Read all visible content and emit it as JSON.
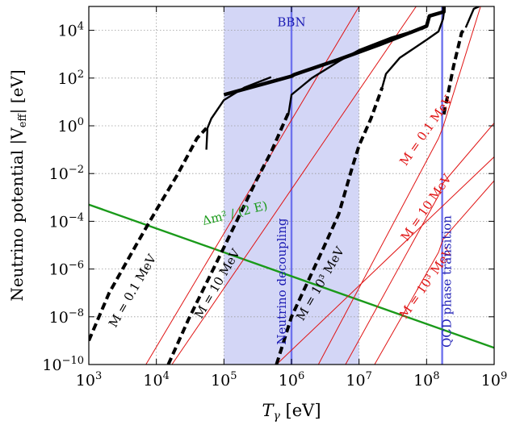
{
  "chart_data": {
    "type": "line",
    "x_scale": "log",
    "y_scale": "log",
    "xlim": [
      1000,
      1000000000
    ],
    "ylim": [
      1e-10,
      100000
    ],
    "grid": true,
    "xlabel_var": "T",
    "xlabel_sub": "γ",
    "xlabel_unit": " [eV]",
    "ylabel": "Neutrino potential |V",
    "ylabel_sub": "eff",
    "ylabel_unit": "| [eV]",
    "x_ticks": [
      {
        "value": 1000,
        "base": "10",
        "exp": "3"
      },
      {
        "value": 10000,
        "base": "10",
        "exp": "4"
      },
      {
        "value": 100000,
        "base": "10",
        "exp": "5"
      },
      {
        "value": 1000000,
        "base": "10",
        "exp": "6"
      },
      {
        "value": 10000000,
        "base": "10",
        "exp": "7"
      },
      {
        "value": 100000000,
        "base": "10",
        "exp": "8"
      },
      {
        "value": 1000000000,
        "base": "10",
        "exp": "9"
      }
    ],
    "y_ticks": [
      {
        "value": 1e-10,
        "base": "10",
        "exp": "−10"
      },
      {
        "value": 1e-08,
        "base": "10",
        "exp": "−8"
      },
      {
        "value": 1e-06,
        "base": "10",
        "exp": "−6"
      },
      {
        "value": 0.0001,
        "base": "10",
        "exp": "−4"
      },
      {
        "value": 0.01,
        "base": "10",
        "exp": "−2"
      },
      {
        "value": 1,
        "base": "10",
        "exp": "0"
      },
      {
        "value": 100,
        "base": "10",
        "exp": "2"
      },
      {
        "value": 10000,
        "base": "10",
        "exp": "4"
      }
    ],
    "bbn_band": {
      "x_range": [
        100000,
        10000000
      ],
      "color": "#d3d6f6",
      "label": "BBN"
    },
    "vertical_lines": [
      {
        "x": 1000000,
        "label": "Neutrino decoupling",
        "color": "#6e72ee"
      },
      {
        "x": 170000000,
        "label": "QCD phase transition",
        "color": "#6e72ee"
      }
    ],
    "series": [
      {
        "name": "Δm² / (2 E)",
        "style": "green",
        "color": "#1a9a1a",
        "points": [
          [
            1000,
            0.0005
          ],
          [
            1000000000,
            5e-10
          ]
        ]
      },
      {
        "name": "M = 0.1 MeV",
        "style": "red-thin",
        "color": "#e01414",
        "points": [
          [
            2500000,
            1e-10
          ],
          [
            150000000,
            0.3
          ],
          [
            175000000,
            0.9
          ],
          [
            630000000,
            100000
          ]
        ]
      },
      {
        "name": "M = 10 MeV",
        "style": "red-thin",
        "color": "#e01414",
        "points": [
          [
            6300000,
            1e-10
          ],
          [
            150000000,
            0.0012
          ],
          [
            175000000,
            0.004
          ],
          [
            1000000000,
            1.3
          ]
        ]
      },
      {
        "name": "M = 10³ MeV",
        "style": "red-thin",
        "color": "#e01414",
        "points": [
          [
            17000000,
            1e-10
          ],
          [
            150000000,
            5e-06
          ],
          [
            175000000,
            1.8e-05
          ],
          [
            1000000000,
            0.005
          ]
        ]
      },
      {
        "name": "",
        "style": "red-thin",
        "color": "#e01414",
        "points": [
          [
            7000,
            1e-10
          ],
          [
            10000000,
            100000
          ]
        ]
      },
      {
        "name": "",
        "style": "red-thin",
        "color": "#e01414",
        "points": [
          [
            17000,
            1e-10
          ],
          [
            70000000,
            100000
          ]
        ]
      },
      {
        "name": "",
        "style": "red-thin",
        "color": "#e01414",
        "points": [
          [
            600000,
            1e-10
          ],
          [
            1000000000,
            0.05
          ]
        ]
      },
      {
        "name": "M = 0.1 MeV",
        "style": "black-dashed",
        "color": "#000000",
        "points": [
          [
            1000,
            1e-09
          ],
          [
            2000,
            1e-07
          ],
          [
            5000,
            1e-05
          ],
          [
            10000,
            0.0003
          ],
          [
            20000,
            0.008
          ],
          [
            40000,
            0.3
          ],
          [
            55000,
            0.8
          ]
        ]
      },
      {
        "name": "M = 10 MeV",
        "style": "black-dashed",
        "color": "#000000",
        "points": [
          [
            15000,
            1e-10
          ],
          [
            30000,
            8e-09
          ],
          [
            100000,
            8e-06
          ],
          [
            300000,
            0.005
          ],
          [
            500000,
            0.08
          ],
          [
            700000,
            0.7
          ],
          [
            900000,
            3.5
          ]
        ]
      },
      {
        "name": "M = 10³ MeV",
        "style": "black-dashed",
        "color": "#000000",
        "points": [
          [
            600000,
            1e-10
          ],
          [
            1000000,
            1e-08
          ],
          [
            3000000,
            8e-06
          ],
          [
            5000000,
            0.0002
          ],
          [
            8000000,
            0.02
          ],
          [
            10000000,
            0.15
          ],
          [
            15000000,
            2
          ],
          [
            22000000,
            40
          ]
        ]
      },
      {
        "name": "",
        "style": "black-dashed",
        "color": "#000000",
        "points": [
          [
            180000000,
            3
          ],
          [
            250000000,
            300
          ],
          [
            330000000,
            8000
          ],
          [
            380000000,
            13000
          ]
        ]
      },
      {
        "name": "",
        "style": "black-solid",
        "color": "#000000",
        "points": [
          [
            55000,
            0.1
          ],
          [
            57000,
            0.8
          ],
          [
            65000,
            2
          ],
          [
            100000,
            12
          ],
          [
            200000,
            40
          ],
          [
            500000,
            110
          ]
        ]
      },
      {
        "name": "",
        "style": "black-solid",
        "color": "#000000",
        "points": [
          [
            900000,
            3
          ],
          [
            1000000,
            20
          ],
          [
            2000000,
            100
          ],
          [
            5000000,
            500
          ],
          [
            10000000,
            1500
          ],
          [
            30000000,
            5000
          ],
          [
            60000000,
            9000
          ],
          [
            90000000,
            12000
          ]
        ]
      },
      {
        "name": "",
        "style": "black-solid",
        "color": "#000000",
        "points": [
          [
            22000000,
            40
          ],
          [
            25000000,
            150
          ],
          [
            40000000,
            700
          ],
          [
            100000000,
            4000
          ],
          [
            150000000,
            9000
          ],
          [
            175000000,
            30000
          ],
          [
            185000000,
            100000
          ]
        ]
      },
      {
        "name": "",
        "style": "black-solid",
        "color": "#000000",
        "points": [
          [
            380000000,
            13000
          ],
          [
            500000000,
            80000
          ],
          [
            600000000,
            100000
          ]
        ]
      },
      {
        "name": "",
        "style": "black-thick",
        "color": "#000000",
        "points": [
          [
            100000,
            20
          ],
          [
            500000,
            70
          ],
          [
            1000000,
            120
          ],
          [
            1100000,
            140
          ],
          [
            5000000,
            600
          ],
          [
            20000000,
            2500
          ],
          [
            100000000,
            15000
          ],
          [
            110000000,
            40000
          ],
          [
            180000000,
            60000
          ],
          [
            180000000,
            100000
          ]
        ]
      }
    ],
    "annotations": [
      {
        "text": "BBN",
        "x": 1000000,
        "y": 15000,
        "rotate": 0,
        "color": "#1c1cb4",
        "anchor": "middle"
      },
      {
        "text": "Δm² / (2 E)",
        "x": 150000,
        "y": 0.00015,
        "rotate": -14,
        "color": "#1a9a1a",
        "anchor": "middle"
      },
      {
        "text": "M = 0.1 MeV",
        "x": 5000,
        "y": 1e-07,
        "rotate": -60,
        "color": "#000000",
        "anchor": "middle"
      },
      {
        "text": "M = 10 MeV",
        "x": 90000,
        "y": 2e-07,
        "rotate": -60,
        "color": "#000000",
        "anchor": "middle"
      },
      {
        "text": "M = 10³ MeV",
        "x": 3000000,
        "y": 2e-07,
        "rotate": -60,
        "color": "#000000",
        "anchor": "middle"
      },
      {
        "text": "M = 0.1 MeV",
        "x": 110000000,
        "y": 0.5,
        "rotate": -55,
        "color": "#e01414",
        "anchor": "middle"
      },
      {
        "text": "M = 10 MeV",
        "x": 110000000,
        "y": 0.0003,
        "rotate": -55,
        "color": "#e01414",
        "anchor": "middle"
      },
      {
        "text": "M = 10³ MeV",
        "x": 110000000,
        "y": 2e-07,
        "rotate": -55,
        "color": "#e01414",
        "anchor": "middle"
      },
      {
        "text": "Neutrino decoupling",
        "x": 830000,
        "y": 3e-07,
        "rotate": -90,
        "color": "#1c1cb4",
        "anchor": "middle"
      },
      {
        "text": "QCD phase transition",
        "x": 230000000,
        "y": 3e-07,
        "rotate": -90,
        "color": "#1c1cb4",
        "anchor": "middle"
      }
    ]
  }
}
